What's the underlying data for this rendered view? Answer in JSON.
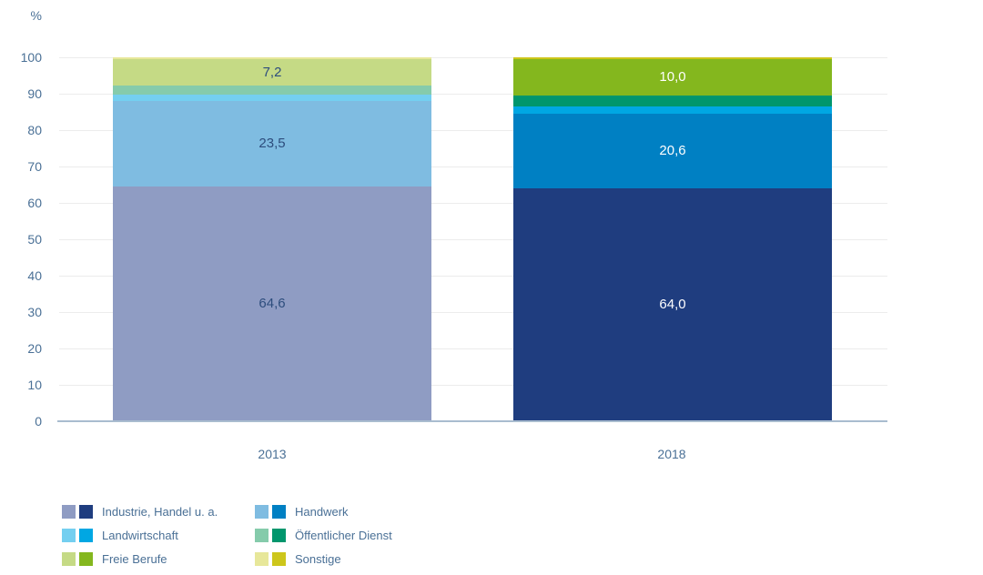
{
  "chart_data": {
    "type": "bar",
    "stacked": true,
    "title": "",
    "unit_label": "%",
    "categories": [
      "2013",
      "2018"
    ],
    "series": [
      {
        "name": "Industrie, Handel u. a.",
        "values": [
          64.6,
          64.0
        ],
        "display": [
          "64,6",
          "64,0"
        ],
        "colors": [
          "#8f9cc3",
          "#1f3d7f"
        ]
      },
      {
        "name": "Handwerk",
        "values": [
          23.5,
          20.6
        ],
        "display": [
          "23,5",
          "20,6"
        ],
        "colors": [
          "#7fbce1",
          "#0080c3"
        ]
      },
      {
        "name": "Landwirtschaft",
        "values": [
          1.7,
          1.9
        ],
        "display": [
          null,
          null
        ],
        "colors": [
          "#74cff0",
          "#00a7e3"
        ]
      },
      {
        "name": "Öffentlicher Dienst",
        "values": [
          2.4,
          3.0
        ],
        "display": [
          null,
          null
        ],
        "colors": [
          "#85cbab",
          "#00966d"
        ]
      },
      {
        "name": "Freie Berufe",
        "values": [
          7.2,
          10.0
        ],
        "display": [
          "7,2",
          "10,0"
        ],
        "colors": [
          "#c5da85",
          "#84b71e"
        ]
      },
      {
        "name": "Sonstige",
        "values": [
          0.6,
          0.5
        ],
        "display": [
          null,
          null
        ],
        "colors": [
          "#e7e79a",
          "#cdc61b"
        ]
      }
    ],
    "ylim": [
      0,
      100
    ],
    "yticks": [
      0,
      10,
      20,
      30,
      40,
      50,
      60,
      70,
      80,
      90,
      100
    ],
    "grid": true,
    "label_colors": [
      "#2d4d7d",
      "#ffffff"
    ],
    "legend_position": "bottom-left",
    "legend_columns": [
      [
        0,
        2,
        4
      ],
      [
        1,
        3,
        5
      ]
    ]
  },
  "colors": {
    "axis_text": "#4a7096",
    "gridline": "#ececec",
    "baseline": "#a9bccf"
  }
}
